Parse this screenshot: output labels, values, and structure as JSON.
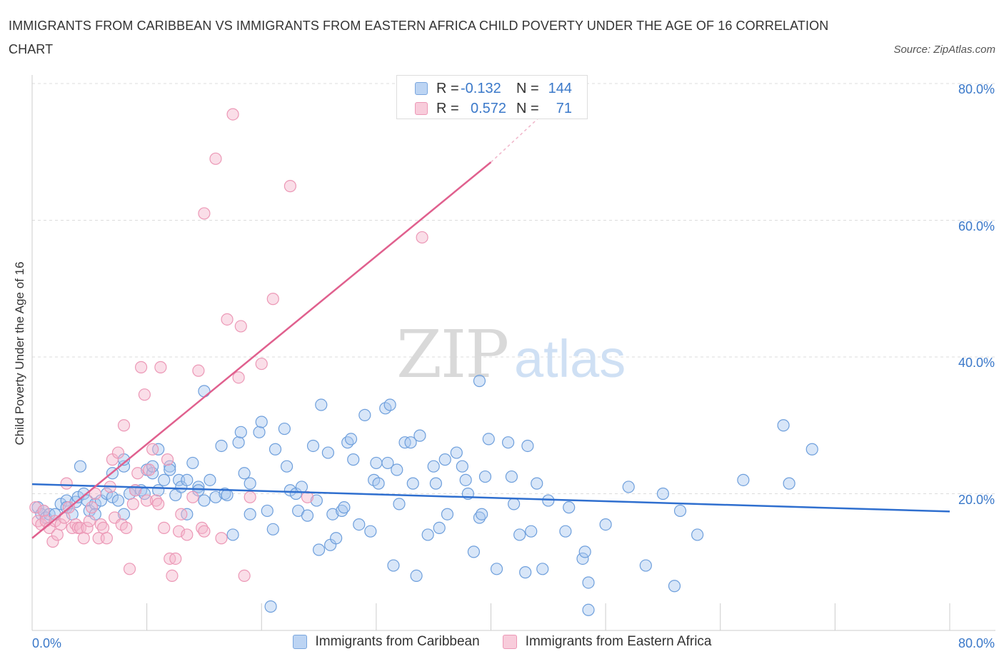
{
  "title": "IMMIGRANTS FROM CARIBBEAN VS IMMIGRANTS FROM EASTERN AFRICA CHILD POVERTY UNDER THE AGE OF 16 CORRELATION CHART",
  "source": "Source: ZipAtlas.com",
  "watermark": {
    "zip": "ZIP",
    "atlas": "atlas"
  },
  "colors": {
    "blue": "#3a78c9",
    "blue_fill": "#a9c8ef",
    "pink": "#e0608e",
    "pink_fill": "#f4b6cb",
    "grid": "#dcdcdc"
  },
  "legend_top": {
    "rows": [
      {
        "r_label": "R =",
        "r_value": "-0.132",
        "n_label": "N =",
        "n_value": "144"
      },
      {
        "r_label": "R =",
        "r_value": "0.572",
        "n_label": "N =",
        "n_value": "71"
      }
    ]
  },
  "legend_bottom": [
    "Immigrants from Caribbean",
    "Immigrants from Eastern Africa"
  ],
  "chart_data": {
    "type": "scatter",
    "title": "IMMIGRANTS FROM CARIBBEAN VS IMMIGRANTS FROM EASTERN AFRICA CHILD POVERTY UNDER THE AGE OF 16 CORRELATION CHART",
    "xlabel": "",
    "ylabel": "Child Poverty Under the Age of 16",
    "xlim": [
      0,
      80
    ],
    "ylim": [
      0,
      80
    ],
    "x_tick_labels": [
      "0.0%",
      "80.0%"
    ],
    "y_tick_labels": [
      "20.0%",
      "40.0%",
      "60.0%",
      "80.0%"
    ],
    "y_ticks": [
      20,
      40,
      60,
      80
    ],
    "grid": true,
    "legend_position": "bottom",
    "series": [
      {
        "name": "Immigrants from Caribbean",
        "color": "#3a78c9",
        "R": -0.132,
        "N": 144,
        "trend": {
          "x": [
            0,
            80
          ],
          "y": [
            21.4,
            17.4
          ]
        },
        "points": [
          [
            0.5,
            18
          ],
          [
            0.8,
            17
          ],
          [
            1,
            17.5
          ],
          [
            1.2,
            16.5
          ],
          [
            1.5,
            17
          ],
          [
            2,
            17
          ],
          [
            2.5,
            18.5
          ],
          [
            3,
            19
          ],
          [
            3,
            18
          ],
          [
            3.5,
            17
          ],
          [
            3.8,
            18.8
          ],
          [
            4,
            19.5
          ],
          [
            4.2,
            24
          ],
          [
            4.5,
            20
          ],
          [
            4.8,
            19
          ],
          [
            5,
            17.5
          ],
          [
            5.5,
            18.5
          ],
          [
            5.5,
            17
          ],
          [
            6,
            19
          ],
          [
            6.5,
            20
          ],
          [
            7,
            19.5
          ],
          [
            7,
            23
          ],
          [
            7.5,
            19
          ],
          [
            8,
            24
          ],
          [
            8,
            25
          ],
          [
            8,
            17
          ],
          [
            8.5,
            20
          ],
          [
            9,
            20.5
          ],
          [
            9.5,
            20.5
          ],
          [
            9.8,
            20
          ],
          [
            10,
            23.5
          ],
          [
            10.5,
            23
          ],
          [
            10.5,
            24
          ],
          [
            11,
            20.5
          ],
          [
            11,
            26.5
          ],
          [
            11.5,
            22
          ],
          [
            12,
            24
          ],
          [
            12,
            23.5
          ],
          [
            12.5,
            19.8
          ],
          [
            12.8,
            22
          ],
          [
            13,
            21
          ],
          [
            13.5,
            17
          ],
          [
            13.5,
            22
          ],
          [
            14,
            24.5
          ],
          [
            14.5,
            21
          ],
          [
            14.5,
            20.5
          ],
          [
            15,
            19
          ],
          [
            15,
            35
          ],
          [
            15.5,
            22
          ],
          [
            16,
            19.5
          ],
          [
            16.5,
            27
          ],
          [
            16.8,
            20
          ],
          [
            17,
            19.8
          ],
          [
            17.5,
            14
          ],
          [
            18,
            27.5
          ],
          [
            18.2,
            29
          ],
          [
            18.5,
            23
          ],
          [
            19,
            17
          ],
          [
            19,
            21.5
          ],
          [
            19.8,
            29
          ],
          [
            20,
            30.5
          ],
          [
            20.5,
            17.5
          ],
          [
            20.8,
            3.5
          ],
          [
            21,
            14.8
          ],
          [
            21.2,
            26.5
          ],
          [
            22,
            29.5
          ],
          [
            22.2,
            24
          ],
          [
            22.5,
            20.5
          ],
          [
            23,
            20
          ],
          [
            23.2,
            17.5
          ],
          [
            23.5,
            21
          ],
          [
            24,
            16.8
          ],
          [
            24.5,
            27
          ],
          [
            24.8,
            19
          ],
          [
            25,
            11.8
          ],
          [
            25.2,
            33
          ],
          [
            25.8,
            26
          ],
          [
            26,
            12.5
          ],
          [
            26.2,
            17
          ],
          [
            26.5,
            13.5
          ],
          [
            27,
            17.5
          ],
          [
            27.2,
            18
          ],
          [
            27.5,
            27.5
          ],
          [
            27.8,
            28
          ],
          [
            28,
            25
          ],
          [
            28.5,
            15.5
          ],
          [
            29,
            31.5
          ],
          [
            29.5,
            14.5
          ],
          [
            29.8,
            22
          ],
          [
            30,
            24.5
          ],
          [
            30.2,
            21.5
          ],
          [
            30.8,
            32.5
          ],
          [
            31,
            24.5
          ],
          [
            31.2,
            33
          ],
          [
            31.5,
            9.5
          ],
          [
            31.8,
            23.5
          ],
          [
            32,
            18.5
          ],
          [
            32.5,
            27.5
          ],
          [
            33,
            27.5
          ],
          [
            33.2,
            21.5
          ],
          [
            33.5,
            8
          ],
          [
            33.8,
            28.5
          ],
          [
            34.5,
            14
          ],
          [
            35,
            24
          ],
          [
            35.2,
            21.5
          ],
          [
            35.5,
            15
          ],
          [
            36,
            25
          ],
          [
            36.2,
            17
          ],
          [
            37,
            26
          ],
          [
            37.5,
            24
          ],
          [
            37.8,
            22
          ],
          [
            38,
            20
          ],
          [
            38.5,
            11.5
          ],
          [
            39,
            16.5
          ],
          [
            39.2,
            17
          ],
          [
            39.5,
            22.5
          ],
          [
            39.8,
            28
          ],
          [
            40.5,
            9
          ],
          [
            41.5,
            27.5
          ],
          [
            41.8,
            22.5
          ],
          [
            42,
            18.5
          ],
          [
            42.5,
            14
          ],
          [
            43,
            8.5
          ],
          [
            43.2,
            27
          ],
          [
            43.5,
            14.5
          ],
          [
            44,
            21.5
          ],
          [
            44.5,
            9
          ],
          [
            45,
            19
          ],
          [
            46.5,
            14.5
          ],
          [
            46.8,
            18
          ],
          [
            48,
            10.5
          ],
          [
            48.2,
            11.5
          ],
          [
            48.5,
            7
          ],
          [
            48.5,
            3
          ],
          [
            50,
            15.5
          ],
          [
            52,
            21
          ],
          [
            53.5,
            9.5
          ],
          [
            55,
            20
          ],
          [
            56,
            6.5
          ],
          [
            56.5,
            17.5
          ],
          [
            58,
            14
          ],
          [
            62,
            22
          ],
          [
            65.5,
            30
          ],
          [
            66,
            21.5
          ],
          [
            68,
            26.5
          ],
          [
            39,
            36.5
          ]
        ]
      },
      {
        "name": "Immigrants from Eastern Africa",
        "color": "#e0608e",
        "R": 0.572,
        "N": 71,
        "trend": {
          "x": [
            0,
            40
          ],
          "y": [
            13.5,
            68.5
          ]
        },
        "trend_dashed": {
          "x": [
            40,
            44.5
          ],
          "y": [
            68.5,
            75.5
          ]
        },
        "points": [
          [
            0.3,
            18
          ],
          [
            0.5,
            16
          ],
          [
            0.8,
            15.5
          ],
          [
            1,
            17.5
          ],
          [
            1.2,
            16
          ],
          [
            1.5,
            15
          ],
          [
            1.8,
            13
          ],
          [
            2,
            16
          ],
          [
            2.2,
            14
          ],
          [
            2.5,
            15.5
          ],
          [
            2.8,
            16.5
          ],
          [
            3,
            21.5
          ],
          [
            3.2,
            18
          ],
          [
            3.5,
            15
          ],
          [
            3.8,
            15.5
          ],
          [
            4,
            15
          ],
          [
            4.2,
            15
          ],
          [
            4.5,
            13.5
          ],
          [
            4.8,
            15
          ],
          [
            5,
            16
          ],
          [
            5.2,
            18
          ],
          [
            5.5,
            20
          ],
          [
            5.8,
            13.5
          ],
          [
            6,
            15.5
          ],
          [
            6.2,
            15
          ],
          [
            6.5,
            13.5
          ],
          [
            6.8,
            21
          ],
          [
            7,
            25
          ],
          [
            7.2,
            16.5
          ],
          [
            7.5,
            26
          ],
          [
            7.8,
            15.5
          ],
          [
            8,
            30
          ],
          [
            8.2,
            15
          ],
          [
            8.5,
            9
          ],
          [
            8.8,
            18.5
          ],
          [
            9,
            20.5
          ],
          [
            9.2,
            23
          ],
          [
            9.5,
            38.5
          ],
          [
            9.8,
            34.5
          ],
          [
            10,
            19
          ],
          [
            10.2,
            23.5
          ],
          [
            10.5,
            26.5
          ],
          [
            10.8,
            19
          ],
          [
            11,
            18.5
          ],
          [
            11.2,
            38.5
          ],
          [
            11.5,
            15
          ],
          [
            11.8,
            25
          ],
          [
            12,
            10.5
          ],
          [
            12.2,
            8
          ],
          [
            12.5,
            10.5
          ],
          [
            12.8,
            14.5
          ],
          [
            13,
            17
          ],
          [
            13.5,
            14
          ],
          [
            14,
            19.5
          ],
          [
            14.5,
            38
          ],
          [
            14.8,
            15
          ],
          [
            15,
            61
          ],
          [
            15,
            14.5
          ],
          [
            16,
            69
          ],
          [
            16.5,
            13.5
          ],
          [
            17,
            45.5
          ],
          [
            17.5,
            75.5
          ],
          [
            18,
            37
          ],
          [
            18.2,
            44.5
          ],
          [
            18.5,
            8
          ],
          [
            19,
            19.5
          ],
          [
            20,
            39
          ],
          [
            21,
            48.5
          ],
          [
            22.5,
            65
          ],
          [
            24,
            19.5
          ],
          [
            34,
            57.5
          ]
        ]
      }
    ]
  }
}
